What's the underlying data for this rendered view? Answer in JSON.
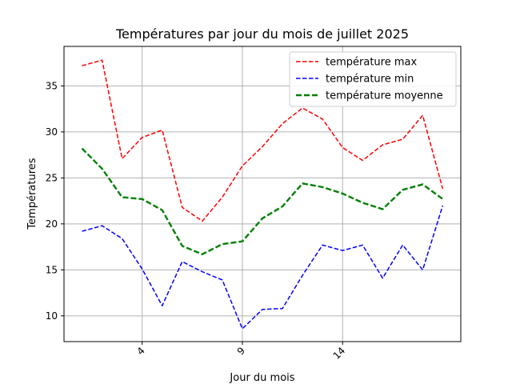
{
  "chart_data": {
    "type": "line",
    "title": "Températures par jour du mois de juillet 2025",
    "xlabel": "Jour du mois",
    "ylabel": "Températures",
    "xlim": [
      0.1,
      19.9
    ],
    "ylim": [
      7.2,
      39.3
    ],
    "x_ticks": [
      4,
      9,
      14
    ],
    "y_ticks": [
      10,
      15,
      20,
      25,
      30,
      35
    ],
    "grid": true,
    "legend_position": "top-right",
    "x": [
      1,
      2,
      3,
      4,
      5,
      6,
      7,
      8,
      9,
      10,
      11,
      12,
      13,
      14,
      15,
      16,
      17,
      18,
      19
    ],
    "series": [
      {
        "name": "température max",
        "color": "#ff0000",
        "style": "dashed",
        "values": [
          37.2,
          37.8,
          27.1,
          29.4,
          30.2,
          21.8,
          20.3,
          22.9,
          26.3,
          28.4,
          30.9,
          32.6,
          31.4,
          28.3,
          26.9,
          28.6,
          29.2,
          31.8,
          23.8
        ]
      },
      {
        "name": "température min",
        "color": "#0000ff",
        "style": "dashed",
        "values": [
          19.2,
          19.8,
          18.4,
          15.1,
          11.1,
          15.9,
          14.8,
          13.9,
          8.6,
          10.7,
          10.8,
          14.4,
          17.7,
          17.1,
          17.7,
          14.1,
          17.7,
          15.0,
          22.0
        ]
      },
      {
        "name": "température moyenne",
        "color": "#008000",
        "style": "dashed-thick",
        "values": [
          28.2,
          26.0,
          22.9,
          22.7,
          21.5,
          17.6,
          16.7,
          17.8,
          18.1,
          20.6,
          21.9,
          24.4,
          24.0,
          23.3,
          22.3,
          21.6,
          23.7,
          24.3,
          22.7
        ]
      }
    ]
  }
}
